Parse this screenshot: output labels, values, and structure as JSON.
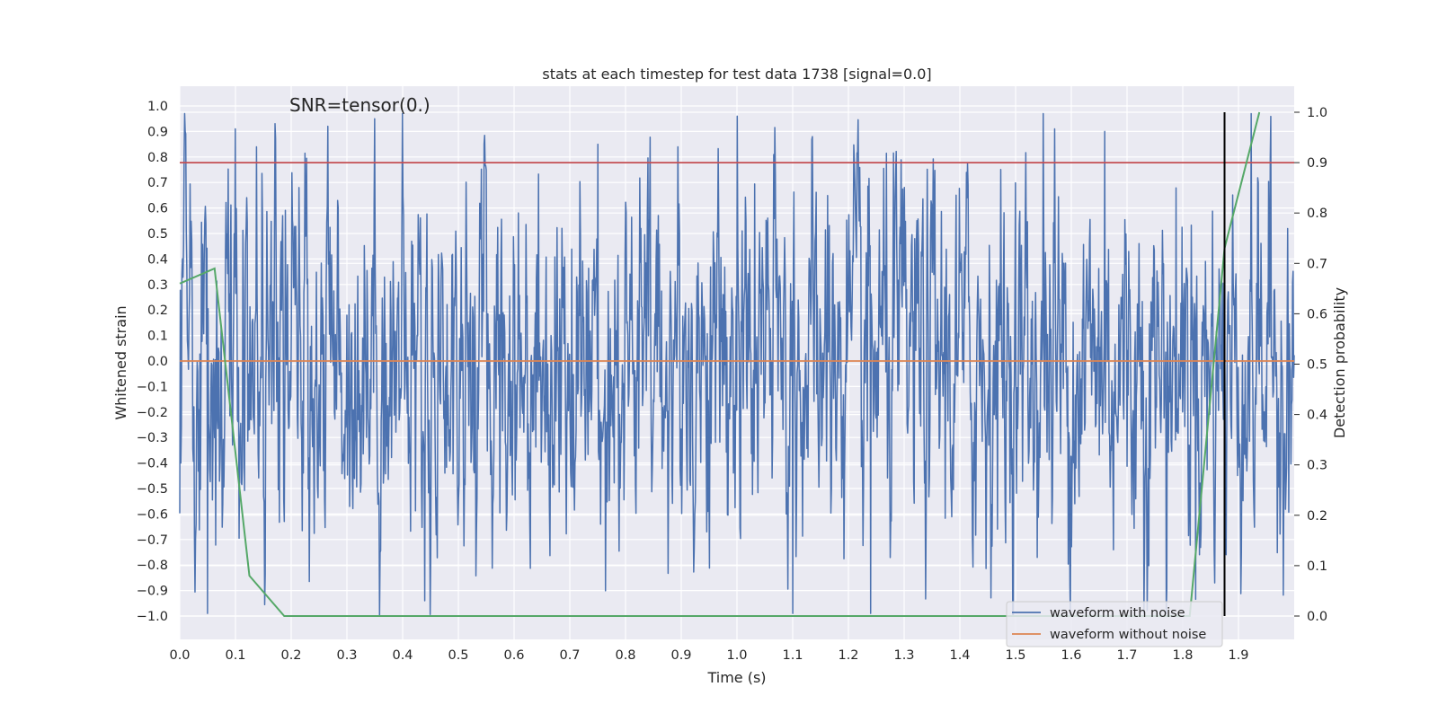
{
  "chart_data": {
    "type": "line",
    "title": "stats at each timestep for test data 1738 [signal=0.0]",
    "annotation": "SNR=tensor(0.)",
    "xlabel": "Time (s)",
    "ylabel": "Whitened strain",
    "y2label": "Detection probability",
    "xlim": [
      0.0,
      2.0
    ],
    "ylim": [
      -1.1,
      1.05
    ],
    "y2lim": [
      -0.05,
      1.04
    ],
    "grid": true,
    "legend_position": "lower-right",
    "x_ticks": [
      "0.0",
      "0.1",
      "0.2",
      "0.3",
      "0.4",
      "0.5",
      "0.6",
      "0.7",
      "0.8",
      "0.9",
      "1.0",
      "1.1",
      "1.2",
      "1.3",
      "1.4",
      "1.5",
      "1.6",
      "1.7",
      "1.8",
      "1.9"
    ],
    "y_ticks": [
      "1.0",
      "0.9",
      "0.8",
      "0.7",
      "0.6",
      "0.5",
      "0.4",
      "0.3",
      "0.2",
      "0.1",
      "0.0",
      "−0.1",
      "−0.2",
      "−0.3",
      "−0.4",
      "−0.5",
      "−0.6",
      "−0.7",
      "−0.8",
      "−0.9",
      "−1.0"
    ],
    "y2_ticks": [
      "1.0",
      "0.9",
      "0.8",
      "0.7",
      "0.6",
      "0.5",
      "0.4",
      "0.3",
      "0.2",
      "0.1",
      "0.0"
    ],
    "series": [
      {
        "name": "waveform with noise",
        "color": "#4c72b0",
        "axis": "left",
        "samples": 2048,
        "range": [
          -1.0,
          0.97
        ],
        "peaks": [
          [
            0.05,
            -0.99
          ],
          [
            0.1,
            0.91
          ],
          [
            0.35,
            0.95
          ],
          [
            0.44,
            -0.94
          ],
          [
            0.75,
            0.85
          ],
          [
            1.0,
            0.96
          ],
          [
            1.1,
            -0.99
          ],
          [
            1.24,
            -0.99
          ],
          [
            1.55,
            0.97
          ],
          [
            1.57,
            0.91
          ],
          [
            1.66,
            0.9
          ],
          [
            1.73,
            -0.99
          ],
          [
            1.77,
            -0.99
          ]
        ]
      },
      {
        "name": "waveform without noise",
        "color": "#dd8452",
        "axis": "left",
        "values": [
          [
            0.0,
            0.0
          ],
          [
            2.0,
            0.0
          ]
        ]
      },
      {
        "color": "#55a868",
        "axis": "right",
        "values": [
          [
            0.0,
            0.66
          ],
          [
            0.0625,
            0.69
          ],
          [
            0.125,
            0.08
          ],
          [
            0.1875,
            0.0
          ],
          [
            1.8125,
            0.0
          ],
          [
            1.875,
            0.73
          ],
          [
            1.9375,
            1.0
          ]
        ]
      }
    ],
    "hlines": [
      {
        "y2": 0.9,
        "color": "#c44e52"
      }
    ],
    "vlines": [
      {
        "x": 1.875,
        "y2_range": [
          0.0,
          1.0
        ],
        "color": "#000000"
      }
    ]
  }
}
